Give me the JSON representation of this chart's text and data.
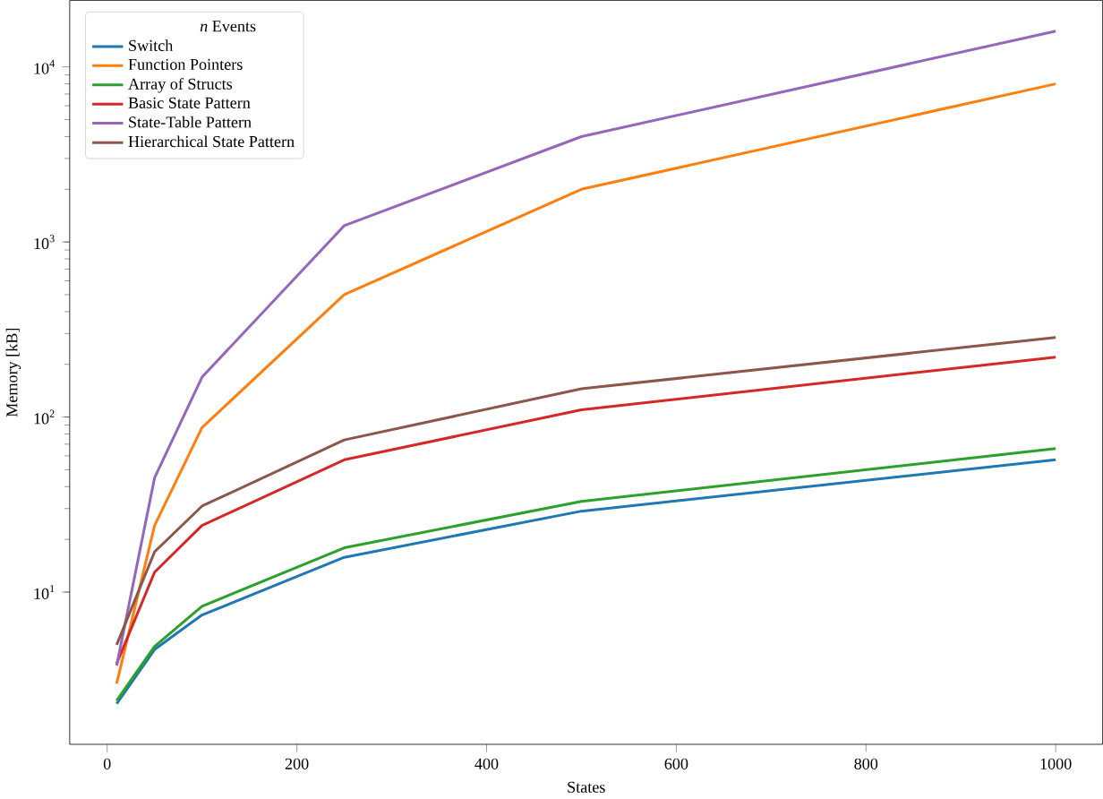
{
  "chart_data": {
    "type": "line",
    "xlabel": "States",
    "ylabel": "Memory [kB]",
    "legend_title": "*n* Events",
    "legend": "top left",
    "log": "y",
    "grid": false,
    "x": [
      10,
      50,
      100,
      250,
      500,
      1000
    ],
    "xlim": [
      -39.5,
      1049.5
    ],
    "xticks": [
      0,
      200,
      400,
      600,
      800,
      1000
    ],
    "ylim": [
      1.35,
      24000
    ],
    "yticks": [
      {
        "value": 10,
        "label": "10$^{1}$"
      },
      {
        "value": 100,
        "label": "10$^{2}$"
      },
      {
        "value": 1000,
        "label": "10$^{3}$"
      },
      {
        "value": 10000,
        "label": "10$^{4}$"
      }
    ],
    "series": [
      {
        "name": "Switch",
        "color": "#1f77b4",
        "values": [
          2.3,
          4.7,
          7.4,
          15.8,
          29,
          57
        ]
      },
      {
        "name": "Function Pointers",
        "color": "#ff7f0e",
        "values": [
          3.0,
          24,
          87,
          500,
          2000,
          8000
        ]
      },
      {
        "name": "Array of Structs",
        "color": "#2ca02c",
        "values": [
          2.4,
          4.9,
          8.3,
          17.9,
          33,
          66
        ]
      },
      {
        "name": "Basic State Pattern",
        "color": "#d62728",
        "values": [
          3.9,
          13,
          24,
          57,
          110,
          220
        ]
      },
      {
        "name": "State-Table Pattern",
        "color": "#9467bd",
        "values": [
          3.8,
          45,
          169,
          1240,
          4000,
          16000
        ]
      },
      {
        "name": "Hierarchical State Pattern",
        "color": "#8c564b",
        "values": [
          5.0,
          17,
          31,
          74,
          145,
          285
        ]
      }
    ]
  }
}
